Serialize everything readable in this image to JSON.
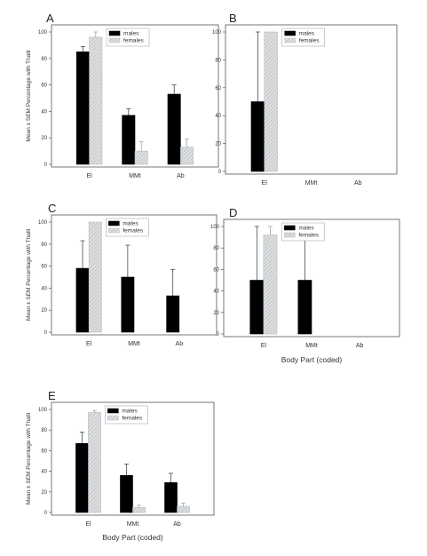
{
  "chart_data": [
    {
      "type": "bar",
      "panel_label": "A",
      "ylabel": "Mean ± SEM Percentage with Thalli",
      "xlabel": "",
      "categories": [
        "El",
        "MMt",
        "Ab"
      ],
      "ylim": [
        0,
        100
      ],
      "yticks": [
        0,
        20,
        40,
        60,
        80,
        100
      ],
      "legend_placement": "top-center",
      "series": [
        {
          "name": "males",
          "values": [
            85,
            37,
            53
          ],
          "errors": [
            4,
            5,
            7
          ],
          "color": "#000000"
        },
        {
          "name": "females",
          "values": [
            96,
            10,
            13
          ],
          "errors": [
            4,
            7,
            6
          ],
          "color": "#cfd3d6",
          "pattern": "hatch"
        }
      ]
    },
    {
      "type": "bar",
      "panel_label": "B",
      "ylabel": "",
      "xlabel": "",
      "categories": [
        "El",
        "MMt",
        "Ab"
      ],
      "ylim": [
        0,
        100
      ],
      "yticks": [
        0,
        20,
        40,
        60,
        80,
        100
      ],
      "legend_placement": "top-center",
      "series": [
        {
          "name": "males",
          "values": [
            50,
            0,
            0
          ],
          "errors": [
            50,
            0,
            0
          ],
          "color": "#000000"
        },
        {
          "name": "females",
          "values": [
            100,
            0,
            0
          ],
          "errors": [
            0,
            0,
            0
          ],
          "color": "#cfd3d6",
          "pattern": "hatch"
        }
      ]
    },
    {
      "type": "bar",
      "panel_label": "C",
      "ylabel": "Mean ± SEM Percentage with Thalli",
      "xlabel": "",
      "categories": [
        "El",
        "MMt",
        "Ab"
      ],
      "ylim": [
        0,
        100
      ],
      "yticks": [
        0,
        20,
        40,
        60,
        80,
        100
      ],
      "legend_placement": "top-center",
      "series": [
        {
          "name": "males",
          "values": [
            58,
            50,
            33
          ],
          "errors": [
            25,
            29,
            24
          ],
          "color": "#000000"
        },
        {
          "name": "females",
          "values": [
            100,
            0,
            0
          ],
          "errors": [
            0,
            0,
            0
          ],
          "color": "#cfd3d6",
          "pattern": "hatch"
        }
      ]
    },
    {
      "type": "bar",
      "panel_label": "D",
      "ylabel": "",
      "xlabel": "Body Part (coded)",
      "categories": [
        "El",
        "MMt",
        "Ab"
      ],
      "ylim": [
        0,
        100
      ],
      "yticks": [
        0,
        20,
        40,
        60,
        80,
        100
      ],
      "legend_placement": "top-center",
      "series": [
        {
          "name": "males",
          "values": [
            50,
            50,
            0
          ],
          "errors": [
            50,
            50,
            0
          ],
          "color": "#000000"
        },
        {
          "name": "females",
          "values": [
            92,
            0,
            0
          ],
          "errors": [
            8,
            0,
            0
          ],
          "color": "#cfd3d6",
          "pattern": "hatch"
        }
      ]
    },
    {
      "type": "bar",
      "panel_label": "E",
      "ylabel": "Mean ± SEM Percentage with Thalli",
      "xlabel": "Body Part (coded)",
      "categories": [
        "El",
        "MMt",
        "Ab"
      ],
      "ylim": [
        0,
        100
      ],
      "yticks": [
        0,
        20,
        40,
        60,
        80,
        100
      ],
      "legend_placement": "top-center",
      "series": [
        {
          "name": "males",
          "values": [
            67,
            36,
            29
          ],
          "errors": [
            11,
            11,
            9
          ],
          "color": "#000000"
        },
        {
          "name": "females",
          "values": [
            97,
            5,
            6
          ],
          "errors": [
            2,
            2,
            3
          ],
          "color": "#cfd3d6",
          "pattern": "hatch"
        }
      ]
    }
  ]
}
